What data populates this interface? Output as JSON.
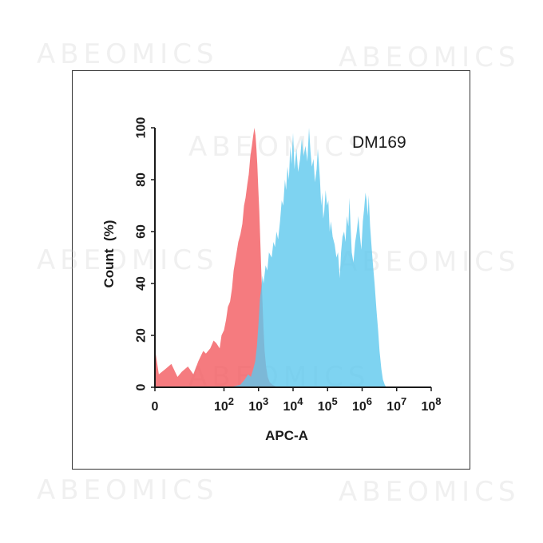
{
  "watermark": "ABEOMICS",
  "chart_data": {
    "type": "area",
    "sample_label": "DM169",
    "xlabel": "APC-A",
    "ylabel": "Count  (%)",
    "x_scale": "log",
    "xlim": [
      1,
      100000000
    ],
    "ylim": [
      0,
      100
    ],
    "x_ticks": [
      {
        "value": 1,
        "base": "0",
        "exp": ""
      },
      {
        "value": 100,
        "base": "10",
        "exp": "2"
      },
      {
        "value": 1000,
        "base": "10",
        "exp": "3"
      },
      {
        "value": 10000,
        "base": "10",
        "exp": "4"
      },
      {
        "value": 100000,
        "base": "10",
        "exp": "5"
      },
      {
        "value": 1000000,
        "base": "10",
        "exp": "6"
      },
      {
        "value": 10000000,
        "base": "10",
        "exp": "7"
      },
      {
        "value": 100000000,
        "base": "10",
        "exp": "8"
      }
    ],
    "y_ticks": [
      0,
      20,
      40,
      60,
      80,
      100
    ],
    "grid": false,
    "legend": "none",
    "series": [
      {
        "color": "#f25a5f",
        "opacity": 0.8,
        "points": [
          [
            1,
            15
          ],
          [
            1.3,
            5
          ],
          [
            2,
            7
          ],
          [
            3,
            9
          ],
          [
            4.5,
            4
          ],
          [
            6,
            6
          ],
          [
            9,
            8
          ],
          [
            13,
            5
          ],
          [
            18,
            10
          ],
          [
            25,
            14
          ],
          [
            30,
            13
          ],
          [
            40,
            15
          ],
          [
            50,
            18
          ],
          [
            60,
            17
          ],
          [
            75,
            15
          ],
          [
            85,
            20
          ],
          [
            100,
            22
          ],
          [
            115,
            26
          ],
          [
            130,
            31
          ],
          [
            150,
            33
          ],
          [
            170,
            38
          ],
          [
            190,
            45
          ],
          [
            220,
            50
          ],
          [
            260,
            56
          ],
          [
            300,
            59
          ],
          [
            340,
            63
          ],
          [
            380,
            70
          ],
          [
            420,
            73
          ],
          [
            470,
            78
          ],
          [
            520,
            82
          ],
          [
            580,
            89
          ],
          [
            640,
            93
          ],
          [
            700,
            97
          ],
          [
            760,
            100
          ],
          [
            820,
            97
          ],
          [
            870,
            92
          ],
          [
            920,
            86
          ],
          [
            980,
            77
          ],
          [
            1050,
            68
          ],
          [
            1120,
            57
          ],
          [
            1200,
            45
          ],
          [
            1300,
            33
          ],
          [
            1400,
            22
          ],
          [
            1500,
            14
          ],
          [
            1650,
            8
          ],
          [
            1850,
            4
          ],
          [
            2100,
            2
          ],
          [
            2500,
            1
          ],
          [
            3500,
            0
          ]
        ]
      },
      {
        "color": "#5ec8ee",
        "opacity": 0.8,
        "points": [
          [
            150,
            0
          ],
          [
            300,
            1
          ],
          [
            400,
            3
          ],
          [
            500,
            5
          ],
          [
            600,
            4
          ],
          [
            700,
            7
          ],
          [
            800,
            10
          ],
          [
            900,
            16
          ],
          [
            1000,
            25
          ],
          [
            1100,
            34
          ],
          [
            1200,
            38
          ],
          [
            1300,
            43
          ],
          [
            1400,
            40
          ],
          [
            1600,
            47
          ],
          [
            1800,
            45
          ],
          [
            2000,
            52
          ],
          [
            2400,
            50
          ],
          [
            2700,
            56
          ],
          [
            3000,
            54
          ],
          [
            3300,
            60
          ],
          [
            3700,
            57
          ],
          [
            4200,
            64
          ],
          [
            4700,
            72
          ],
          [
            5200,
            70
          ],
          [
            5800,
            80
          ],
          [
            6300,
            76
          ],
          [
            6900,
            85
          ],
          [
            7600,
            80
          ],
          [
            8300,
            93
          ],
          [
            9000,
            86
          ],
          [
            10000,
            98
          ],
          [
            11000,
            84
          ],
          [
            12500,
            92
          ],
          [
            14000,
            83
          ],
          [
            16000,
            88
          ],
          [
            18000,
            96
          ],
          [
            20000,
            89
          ],
          [
            23000,
            93
          ],
          [
            26000,
            87
          ],
          [
            29000,
            100
          ],
          [
            32000,
            91
          ],
          [
            35000,
            85
          ],
          [
            39000,
            88
          ],
          [
            43000,
            79
          ],
          [
            48000,
            84
          ],
          [
            52000,
            92
          ],
          [
            56000,
            86
          ],
          [
            60000,
            80
          ],
          [
            65000,
            70
          ],
          [
            70000,
            75
          ],
          [
            75000,
            65
          ],
          [
            80000,
            68
          ],
          [
            88000,
            76
          ],
          [
            96000,
            70
          ],
          [
            105000,
            72
          ],
          [
            115000,
            60
          ],
          [
            125000,
            64
          ],
          [
            140000,
            58
          ],
          [
            160000,
            55
          ],
          [
            180000,
            50
          ],
          [
            200000,
            52
          ],
          [
            225000,
            42
          ],
          [
            245000,
            52
          ],
          [
            270000,
            58
          ],
          [
            300000,
            60
          ],
          [
            330000,
            56
          ],
          [
            360000,
            66
          ],
          [
            400000,
            62
          ],
          [
            430000,
            73
          ],
          [
            460000,
            63
          ],
          [
            500000,
            52
          ],
          [
            560000,
            48
          ],
          [
            630000,
            56
          ],
          [
            700000,
            60
          ],
          [
            780000,
            66
          ],
          [
            870000,
            58
          ],
          [
            950000,
            53
          ],
          [
            1050000,
            64
          ],
          [
            1150000,
            69
          ],
          [
            1250000,
            75
          ],
          [
            1350000,
            72
          ],
          [
            1450000,
            66
          ],
          [
            1550000,
            74
          ],
          [
            1700000,
            62
          ],
          [
            1900000,
            53
          ],
          [
            2100000,
            46
          ],
          [
            2300000,
            40
          ],
          [
            2600000,
            30
          ],
          [
            2900000,
            22
          ],
          [
            3200000,
            14
          ],
          [
            3600000,
            7
          ],
          [
            4000000,
            3
          ],
          [
            4500000,
            1
          ],
          [
            5000000,
            0
          ]
        ]
      }
    ]
  }
}
